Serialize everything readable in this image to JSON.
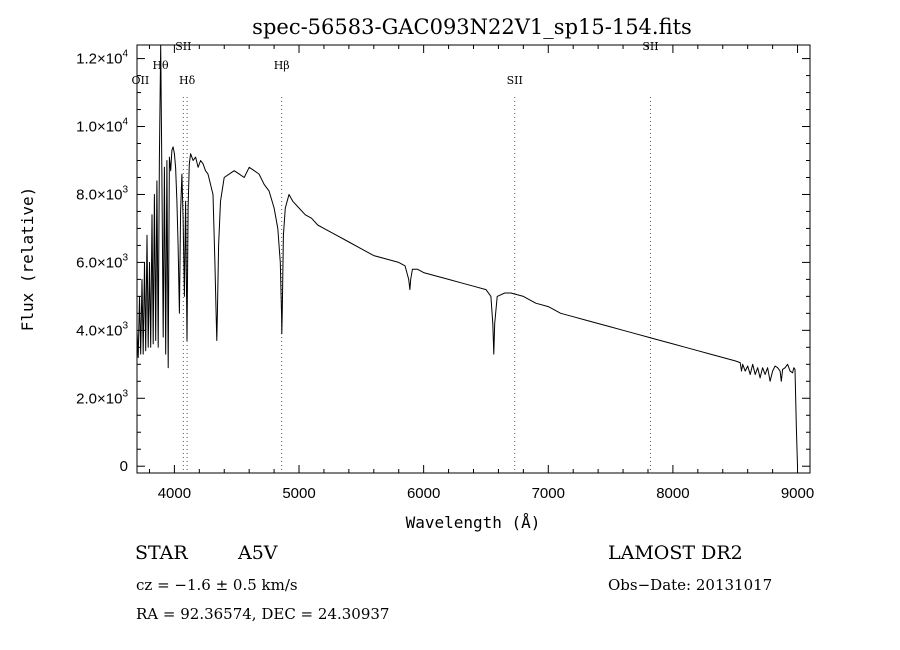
{
  "chart_data": {
    "type": "line",
    "title": "spec-56583-GAC093N22V1_sp15-154.fits",
    "xlabel": "Wavelength (Å)",
    "ylabel": "Flux (relative)",
    "xlim": [
      3700,
      9100
    ],
    "ylim": [
      -200,
      12400
    ],
    "x_ticks": [
      4000,
      5000,
      6000,
      7000,
      8000,
      9000
    ],
    "x_tick_labels": [
      "4000",
      "5000",
      "6000",
      "7000",
      "8000",
      "9000"
    ],
    "y_ticks": [
      0,
      2000,
      4000,
      6000,
      8000,
      10000,
      12000
    ],
    "y_tick_labels": [
      {
        "mant": "0",
        "exp": ""
      },
      {
        "mant": "2.0×10",
        "exp": "3"
      },
      {
        "mant": "4.0×10",
        "exp": "3"
      },
      {
        "mant": "6.0×10",
        "exp": "3"
      },
      {
        "mant": "8.0×10",
        "exp": "3"
      },
      {
        "mant": "1.0×10",
        "exp": "4"
      },
      {
        "mant": "1.2×10",
        "exp": "4"
      }
    ],
    "grid": false,
    "series": [
      {
        "x": [
          3700,
          3710,
          3720,
          3730,
          3740,
          3750,
          3760,
          3770,
          3780,
          3790,
          3800,
          3810,
          3820,
          3830,
          3840,
          3850,
          3860,
          3870,
          3880,
          3890,
          3900,
          3910,
          3920,
          3930,
          3940,
          3950,
          3960,
          3970,
          3980,
          3990,
          4000,
          4010,
          4020,
          4030,
          4040,
          4050,
          4060,
          4070,
          4080,
          4090,
          4101,
          4110,
          4120,
          4130,
          4150,
          4170,
          4190,
          4210,
          4230,
          4250,
          4270,
          4290,
          4310,
          4325,
          4335,
          4340,
          4345,
          4355,
          4370,
          4400,
          4440,
          4480,
          4520,
          4560,
          4600,
          4640,
          4680,
          4720,
          4760,
          4800,
          4830,
          4850,
          4860,
          4862,
          4866,
          4875,
          4890,
          4920,
          4950,
          5000,
          5050,
          5100,
          5150,
          5200,
          5300,
          5400,
          5500,
          5600,
          5700,
          5800,
          5850,
          5880,
          5890,
          5896,
          5910,
          5950,
          6000,
          6100,
          6200,
          6300,
          6400,
          6500,
          6540,
          6555,
          6563,
          6570,
          6590,
          6650,
          6700,
          6800,
          6900,
          7000,
          7100,
          7200,
          7300,
          7400,
          7500,
          7600,
          7700,
          7800,
          7900,
          8000,
          8100,
          8200,
          8300,
          8400,
          8500,
          8540,
          8550,
          8560,
          8580,
          8600,
          8620,
          8640,
          8660,
          8680,
          8700,
          8720,
          8740,
          8760,
          8780,
          8800,
          8820,
          8840,
          8860,
          8870,
          8880,
          8900,
          8920,
          8940,
          8960,
          8970,
          8980,
          8990,
          9000
        ],
        "y": [
          4000,
          3200,
          5000,
          3300,
          5500,
          3300,
          6000,
          3400,
          6800,
          3500,
          6000,
          3500,
          7400,
          3600,
          8000,
          3700,
          8400,
          3500,
          9100,
          12400,
          8500,
          3800,
          8800,
          3300,
          9000,
          2900,
          9100,
          8700,
          9300,
          9400,
          9200,
          8800,
          7800,
          6500,
          4500,
          7500,
          8600,
          7300,
          5000,
          7800,
          3700,
          7600,
          8900,
          9200,
          9000,
          9100,
          8800,
          9000,
          8900,
          8700,
          8600,
          8300,
          8000,
          6000,
          4500,
          3700,
          4500,
          6500,
          7800,
          8500,
          8600,
          8700,
          8600,
          8500,
          8800,
          8700,
          8600,
          8300,
          8100,
          7600,
          7000,
          6000,
          4400,
          3900,
          4600,
          6800,
          7600,
          8000,
          7800,
          7600,
          7400,
          7300,
          7100,
          7000,
          6800,
          6600,
          6400,
          6200,
          6100,
          6000,
          5900,
          5500,
          5200,
          5500,
          5800,
          5800,
          5700,
          5600,
          5500,
          5400,
          5300,
          5200,
          5000,
          4200,
          3300,
          4200,
          5000,
          5100,
          5100,
          5000,
          4800,
          4700,
          4500,
          4400,
          4300,
          4200,
          4100,
          4000,
          3900,
          3800,
          3700,
          3600,
          3500,
          3400,
          3300,
          3200,
          3100,
          3050,
          2800,
          3000,
          2800,
          2950,
          2700,
          3000,
          2700,
          2900,
          2600,
          2900,
          2700,
          2900,
          2500,
          2800,
          2950,
          2900,
          2800,
          2500,
          2850,
          2900,
          3000,
          2800,
          2750,
          2900,
          2850,
          1200,
          0
        ]
      }
    ],
    "annotations": [
      {
        "wavelength": 3727,
        "label": "OII",
        "label_y": 11250,
        "dotted": false
      },
      {
        "wavelength": 3889,
        "label": "Hθ",
        "label_y": 11700,
        "dotted": false
      },
      {
        "wavelength": 4072,
        "label": "SII",
        "label_y": 12250,
        "dotted": true
      },
      {
        "wavelength": 4102,
        "label": "Hδ",
        "label_y": 11250,
        "dotted": true
      },
      {
        "wavelength": 4861,
        "label": "Hβ",
        "label_y": 11700,
        "dotted": true
      },
      {
        "wavelength": 6731,
        "label": "SII",
        "label_y": 11250,
        "dotted": true
      },
      {
        "wavelength": 7820,
        "label": "SII",
        "label_y": 12250,
        "dotted": true
      }
    ]
  },
  "info": {
    "class_label": "STAR",
    "subclass": "A5V",
    "survey": "LAMOST DR2",
    "cz": "cz = −1.6 ± 0.5 km/s",
    "obs_date": "Obs−Date: 20131017",
    "radec": "RA =  92.36574, DEC =  24.30937"
  }
}
